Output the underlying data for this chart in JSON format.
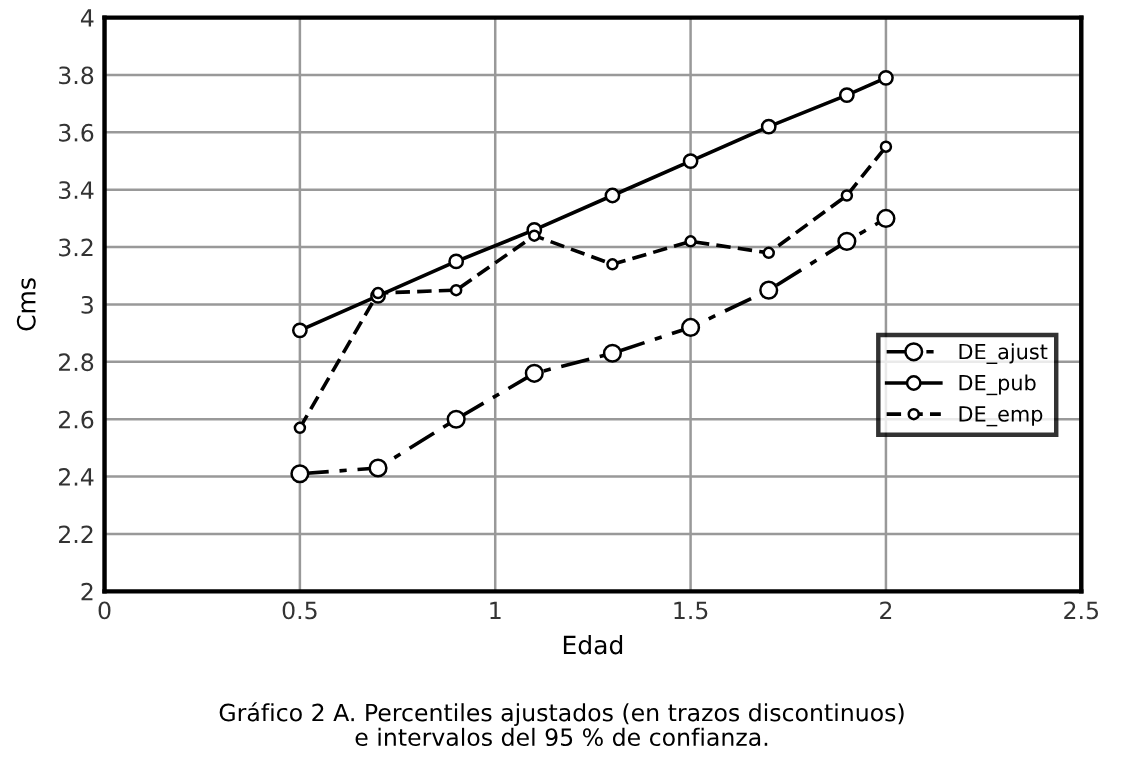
{
  "chart_data": {
    "type": "line",
    "xlabel": "Edad",
    "ylabel": "Cms",
    "x": [
      0.5,
      0.7,
      0.9,
      1.1,
      1.3,
      1.5,
      1.7,
      1.9,
      2
    ],
    "series": [
      {
        "name": "DE_ajust",
        "color": "#000000",
        "line_style": "dashdot",
        "values": [
          2.41,
          2.43,
          2.6,
          2.76,
          2.83,
          2.92,
          3.05,
          3.22,
          3.3
        ]
      },
      {
        "name": "DE_pub",
        "color": "#000000",
        "line_style": "solid",
        "values": [
          2.91,
          3.03,
          3.15,
          3.26,
          3.38,
          3.5,
          3.62,
          3.73,
          3.79
        ]
      },
      {
        "name": "DE_emp",
        "color": "#000000",
        "line_style": "dashed",
        "values": [
          2.57,
          3.04,
          3.05,
          3.24,
          3.14,
          3.22,
          3.18,
          3.38,
          3.55
        ]
      }
    ],
    "xlim": [
      0,
      2.5
    ],
    "xticks": [
      0,
      0.5,
      1,
      1.5,
      2,
      2.5
    ],
    "ylim": [
      2,
      4
    ],
    "yticks": [
      2,
      2.2,
      2.4,
      2.6,
      2.8,
      3,
      3.2,
      3.4,
      3.6,
      3.8,
      4
    ],
    "grid": true,
    "legend": "right",
    "marker": "circle",
    "annotations": [
      "Gráfico 2 A. Percentiles ajustados (en trazos discontinuos)\ne intervalos del 95 % de confianza."
    ]
  }
}
